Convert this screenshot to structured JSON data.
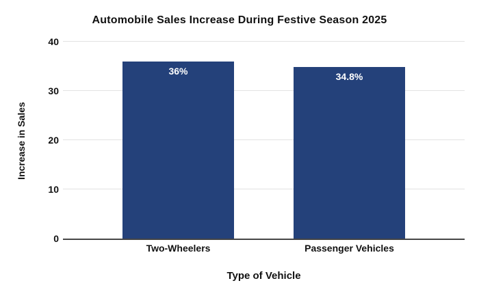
{
  "chart_data": {
    "type": "bar",
    "title": "Automobile Sales Increase During Festive Season 2025",
    "xlabel": "Type of Vehicle",
    "ylabel": "Increase in Sales",
    "categories": [
      "Two-Wheelers",
      "Passenger Vehicles"
    ],
    "values": [
      36,
      34.8
    ],
    "value_labels": [
      "36%",
      "34.8%"
    ],
    "yticks": [
      0,
      10,
      20,
      30,
      40
    ],
    "ylim": [
      0,
      40
    ],
    "grid": "horizontal",
    "legend": "none",
    "colors": {
      "bar": "#24417a",
      "bar_label_text": "#ffffff",
      "gridline": "#e2e2e2",
      "axis_line": "#454545",
      "text": "#111111",
      "background": "#ffffff"
    }
  }
}
